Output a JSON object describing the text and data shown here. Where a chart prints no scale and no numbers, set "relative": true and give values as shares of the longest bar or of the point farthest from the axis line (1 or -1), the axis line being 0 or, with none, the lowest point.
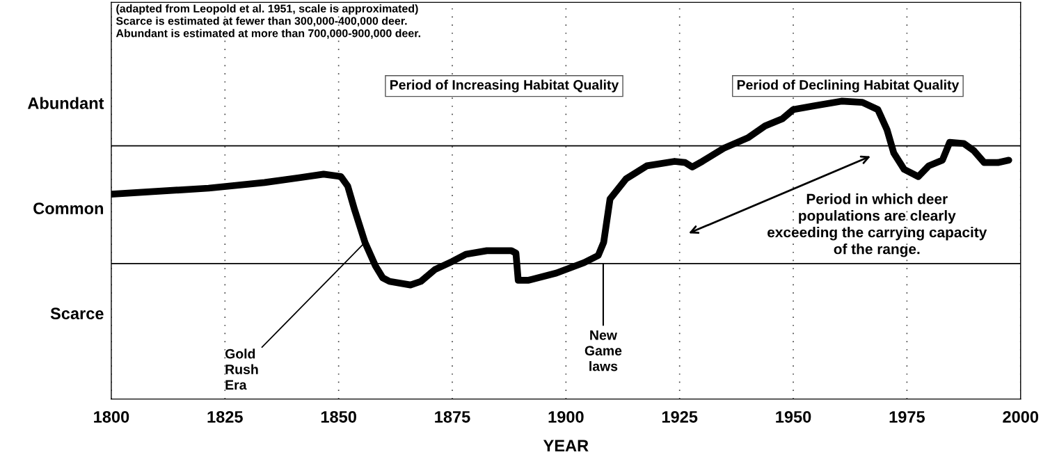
{
  "chart_data": {
    "type": "line",
    "xlabel": "YEAR",
    "relative": true,
    "x": [
      1800,
      1821.4,
      1833.7,
      1841.3,
      1846.7,
      1850.5,
      1852,
      1853.5,
      1855.8,
      1858.1,
      1859.7,
      1861.2,
      1865.8,
      1868.1,
      1871.2,
      1875,
      1878,
      1882.6,
      1888,
      1889,
      1889.5,
      1891.8,
      1897.9,
      1904,
      1907.1,
      1908.3,
      1909.7,
      1913.2,
      1917.8,
      1923.9,
      1926.2,
      1927.8,
      1930,
      1934.7,
      1940,
      1943.8,
      1947.6,
      1950,
      1954.5,
      1960.6,
      1965.2,
      1968.6,
      1970.6,
      1972.1,
      1974.4,
      1977.5,
      1979.8,
      1982.8,
      1984.4,
      1987.5,
      1989.7,
      1992,
      1995,
      1997.4
    ],
    "series": [
      {
        "color": "#000000",
        "values": [
          0.688,
          0.708,
          0.727,
          0.743,
          0.755,
          0.747,
          0.715,
          0.636,
          0.526,
          0.447,
          0.407,
          0.395,
          0.383,
          0.395,
          0.435,
          0.462,
          0.486,
          0.498,
          0.498,
          0.49,
          0.399,
          0.399,
          0.423,
          0.458,
          0.482,
          0.526,
          0.672,
          0.739,
          0.783,
          0.798,
          0.794,
          0.779,
          0.798,
          0.842,
          0.877,
          0.917,
          0.941,
          0.972,
          0.984,
          1,
          0.996,
          0.972,
          0.905,
          0.826,
          0.771,
          0.747,
          0.783,
          0.802,
          0.862,
          0.858,
          0.834,
          0.794,
          0.794,
          0.802
        ]
      }
    ],
    "xlim": [
      1800,
      2000
    ],
    "xticks": [
      1800,
      1825,
      1850,
      1875,
      1900,
      1925,
      1950,
      1975,
      2000
    ],
    "ref_lines": [
      {
        "axis": "y",
        "value": 0.455,
        "color": "#000000"
      },
      {
        "axis": "y",
        "value": 0.85,
        "color": "#000000"
      }
    ],
    "grid": "x",
    "line_style": "solid",
    "annotations": [
      "(adapted from Leopold et al. 1951, scale is approximated)\nScarce is estimated at fewer than 300,000-400,000 deer.\nAbundant is estimated at more than 700,000-900,000 deer.",
      "Period of Increasing Habitat Quality",
      "Period of Declining Habitat Quality",
      {
        "text": "Gold\nRush\nEra",
        "x": 1855.8,
        "y": 0.526
      },
      "New\nGame\nlaws",
      "Abundant",
      "Common",
      "Scarce",
      "Period in which deer\npopulations are clearly\nexceeding the carrying capacity\nof the range."
    ]
  }
}
